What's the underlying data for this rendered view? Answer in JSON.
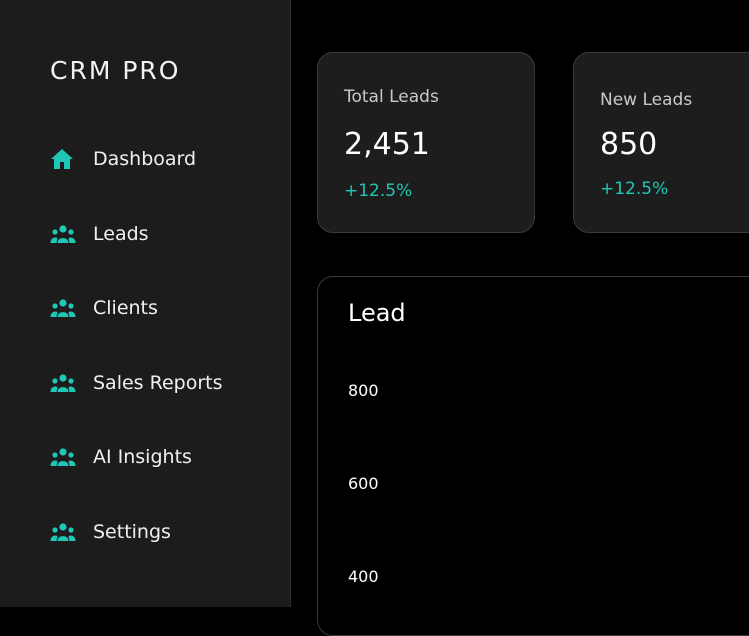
{
  "brand": "CRM PRO",
  "accent_color": "#1fc7b6",
  "sidebar": {
    "items": [
      {
        "label": "Dashboard",
        "icon": "home-icon"
      },
      {
        "label": "Leads",
        "icon": "users-icon"
      },
      {
        "label": "Clients",
        "icon": "users-icon"
      },
      {
        "label": "Sales Reports",
        "icon": "users-icon"
      },
      {
        "label": "AI Insights",
        "icon": "users-icon"
      },
      {
        "label": "Settings",
        "icon": "users-icon"
      }
    ]
  },
  "stats": [
    {
      "title": "Total Leads",
      "value": "2,451",
      "change": "+12.5%"
    },
    {
      "title": "New Leads",
      "value": "850",
      "change": "+12.5%"
    }
  ],
  "chart": {
    "title": "Lead",
    "y_ticks": [
      "800",
      "600",
      "400"
    ]
  },
  "chart_data": {
    "type": "line",
    "title": "Lead",
    "y_ticks": [
      800,
      600,
      400
    ],
    "series": []
  }
}
